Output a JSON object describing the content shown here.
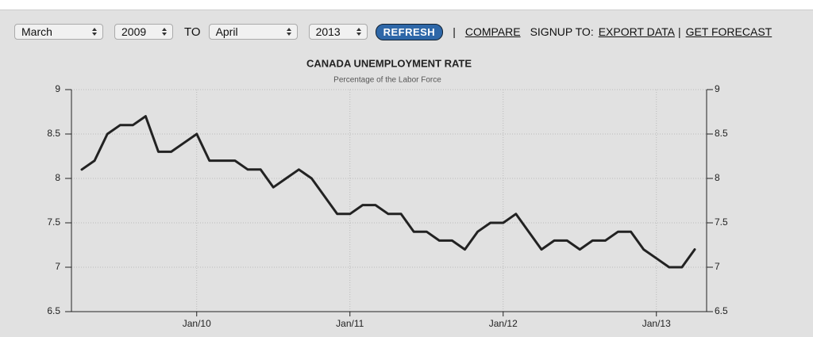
{
  "controls": {
    "from_month": "March",
    "from_year": "2009",
    "to": "TO",
    "to_month": "April",
    "to_year": "2013",
    "refresh": "REFRESH",
    "sep1": "|",
    "compare": "COMPARE",
    "signup": "SIGNUP TO:",
    "export": "EXPORT DATA",
    "sep2": "|",
    "forecast": "GET FORECAST"
  },
  "chart_data": {
    "type": "line",
    "title": "CANADA UNEMPLOYMENT RATE",
    "subtitle": "Percentage of the Labor Force",
    "categories": [
      null,
      null,
      null,
      null,
      null,
      null,
      null,
      null,
      null,
      "Jan/10",
      null,
      null,
      null,
      null,
      null,
      null,
      null,
      null,
      null,
      null,
      null,
      "Jan/11",
      null,
      null,
      null,
      null,
      null,
      null,
      null,
      null,
      null,
      null,
      null,
      "Jan/12",
      null,
      null,
      null,
      null,
      null,
      null,
      null,
      null,
      null,
      null,
      null,
      "Jan/13",
      null,
      null,
      null
    ],
    "series": [
      {
        "name": "Unemployment Rate",
        "color": "#222222",
        "values": [
          8.1,
          8.2,
          8.5,
          8.6,
          8.6,
          8.7,
          8.3,
          8.3,
          8.4,
          8.5,
          8.2,
          8.2,
          8.2,
          8.1,
          8.1,
          7.9,
          8.0,
          8.1,
          8.0,
          7.8,
          7.6,
          7.6,
          7.7,
          7.7,
          7.6,
          7.6,
          7.4,
          7.4,
          7.3,
          7.3,
          7.2,
          7.4,
          7.5,
          7.5,
          7.6,
          7.4,
          7.2,
          7.3,
          7.3,
          7.2,
          7.3,
          7.3,
          7.4,
          7.4,
          7.2,
          7.1,
          7.0,
          7.0,
          7.2
        ]
      }
    ],
    "ylim": [
      6.5,
      9
    ],
    "yticks": [
      6.5,
      7,
      7.5,
      8,
      8.5,
      9
    ],
    "y2lim": [
      6.5,
      9
    ],
    "y2ticks": [
      6.5,
      7,
      7.5,
      8,
      8.5,
      9
    ],
    "grid": true
  }
}
